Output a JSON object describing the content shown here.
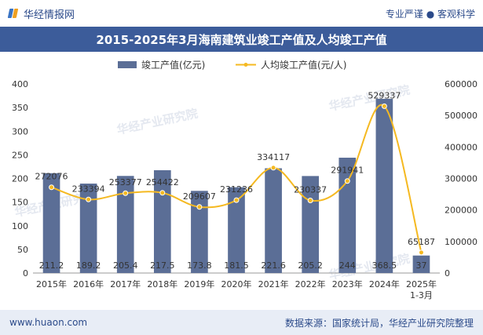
{
  "header": {
    "brand": "华经情报网",
    "right_text": "专业严谨 ● 客观科学"
  },
  "title": "2015-2025年3月海南建筑业竣工产值及人均竣工产值",
  "footer": {
    "site": "www.huaon.com",
    "source": "数据来源：国家统计局，华经产业研究院整理"
  },
  "watermark": "华经产业研究院",
  "chart_data": {
    "type": "bar",
    "categories": [
      "2015年",
      "2016年",
      "2017年",
      "2018年",
      "2019年",
      "2020年",
      "2021年",
      "2022年",
      "2023年",
      "2024年",
      "2025年\n1-3月"
    ],
    "series": [
      {
        "name": "竣工产值(亿元)",
        "type": "bar",
        "axis": "left",
        "color": "#5b6e96",
        "values": [
          211.2,
          189.2,
          205.4,
          217.5,
          173.8,
          181.5,
          221.6,
          205.2,
          244,
          368.5,
          37
        ]
      },
      {
        "name": "人均竣工产值(元/人)",
        "type": "line",
        "axis": "right",
        "color": "#f5b921",
        "values": [
          272076,
          233394,
          253377,
          254422,
          209607,
          231236,
          334117,
          230337,
          291941,
          529337,
          65187
        ]
      }
    ],
    "left_axis": {
      "ylim": [
        0,
        400
      ],
      "ticks": [
        0,
        50,
        100,
        150,
        200,
        250,
        300,
        350,
        400
      ]
    },
    "right_axis": {
      "ylim": [
        0,
        600000
      ],
      "ticks": [
        0,
        100000,
        200000,
        300000,
        400000,
        500000,
        600000
      ]
    },
    "legend_position": "top-center",
    "grid": false
  }
}
